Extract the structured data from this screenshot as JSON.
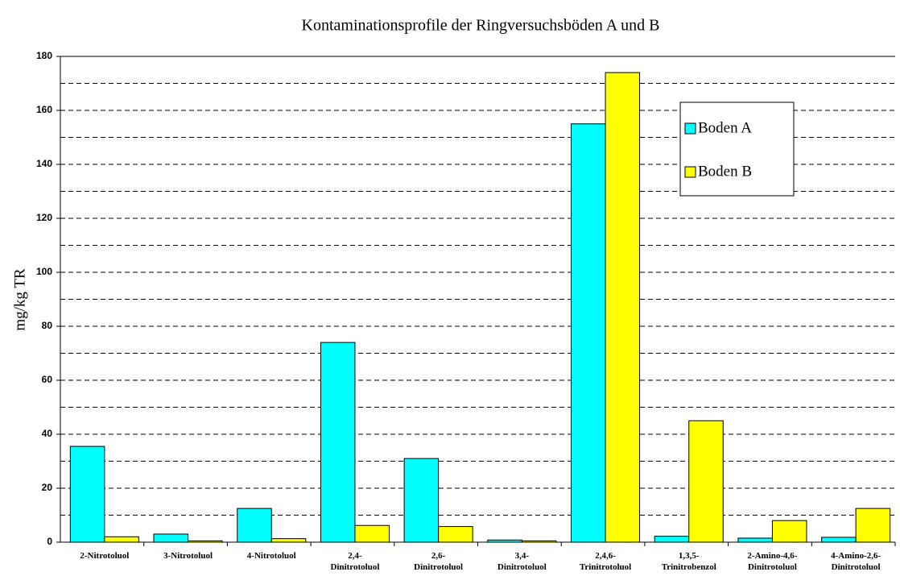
{
  "chart_data": {
    "type": "bar",
    "title": "Kontaminationsprofile der Ringversuchsböden A und B",
    "y_label": "mg/kg TR",
    "categories": [
      "2-Nitrotoluol",
      "3-Nitrotoluol",
      "4-Nitrotoluol",
      "2,4-\nDinitrotoluol",
      "2,6-\nDinitrotoluol",
      "3,4-\nDinitrotoluol",
      "2,4,6-\nTrinitrotoluol",
      "1,3,5-\nTrinitrobenzol",
      "2-Amino-4,6-\nDinitrotoluol",
      "4-Amino-2,6-\nDinitrotoluol"
    ],
    "series": [
      {
        "name": "Boden A",
        "color": "#00ffff",
        "values": [
          35.5,
          3,
          12.5,
          74,
          31,
          0.8,
          155,
          2.2,
          1.5,
          1.8
        ]
      },
      {
        "name": "Boden B",
        "color": "#ffff00",
        "values": [
          2,
          0.5,
          1.3,
          6.2,
          5.8,
          0.5,
          174,
          45,
          8,
          12.5
        ]
      }
    ],
    "ylim": [
      0,
      180
    ],
    "yticks": [
      0,
      20,
      40,
      60,
      80,
      100,
      120,
      140,
      160,
      180
    ],
    "minor_yticks": [
      10,
      30,
      50,
      70,
      90,
      110,
      130,
      150,
      170
    ],
    "grid": true,
    "legend": "upper-right"
  }
}
